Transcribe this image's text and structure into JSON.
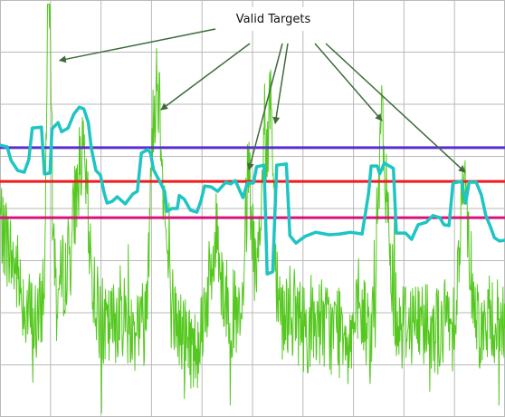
{
  "chart_data": {
    "type": "line",
    "annotation": "Valid Targets",
    "x_range": [
      0,
      1000
    ],
    "y_range": [
      0,
      100
    ],
    "grid": true,
    "colors": {
      "signal": "#55c81f",
      "threshold": "#1fc4c4",
      "level_high": "#5b2fcf",
      "level_mid": "#ee1c1c",
      "level_low": "#d6127a",
      "grid": "#b9b9b9",
      "arrow": "#3f6b3b"
    },
    "levels": [
      {
        "key": "level_high",
        "y": 64.6
      },
      {
        "key": "level_mid",
        "y": 56.5
      },
      {
        "key": "level_low",
        "y": 47.8
      }
    ],
    "threshold_trace": [
      [
        0,
        65.2
      ],
      [
        14,
        64.8
      ],
      [
        22,
        61.5
      ],
      [
        35,
        59.1
      ],
      [
        48,
        58.7
      ],
      [
        57,
        61.7
      ],
      [
        64,
        69.3
      ],
      [
        82,
        69.5
      ],
      [
        88,
        58.3
      ],
      [
        99,
        58.5
      ],
      [
        103,
        69.1
      ],
      [
        115,
        70.6
      ],
      [
        122,
        68.4
      ],
      [
        135,
        69.3
      ],
      [
        146,
        72.6
      ],
      [
        157,
        74.3
      ],
      [
        166,
        73.9
      ],
      [
        175,
        70.6
      ],
      [
        181,
        64.3
      ],
      [
        190,
        59.1
      ],
      [
        199,
        58.0
      ],
      [
        206,
        53.9
      ],
      [
        212,
        51.3
      ],
      [
        222,
        51.7
      ],
      [
        232,
        52.8
      ],
      [
        248,
        51.1
      ],
      [
        263,
        53.5
      ],
      [
        272,
        54.1
      ],
      [
        280,
        63.3
      ],
      [
        293,
        64.1
      ],
      [
        298,
        63.3
      ],
      [
        304,
        59.3
      ],
      [
        318,
        56.1
      ],
      [
        326,
        54.1
      ],
      [
        331,
        49.3
      ],
      [
        340,
        50.0
      ],
      [
        351,
        50.0
      ],
      [
        355,
        53.1
      ],
      [
        365,
        52.2
      ],
      [
        377,
        49.6
      ],
      [
        390,
        49.1
      ],
      [
        398,
        51.9
      ],
      [
        405,
        55.4
      ],
      [
        418,
        55.2
      ],
      [
        431,
        54.1
      ],
      [
        439,
        55.2
      ],
      [
        447,
        56.3
      ],
      [
        457,
        55.9
      ],
      [
        466,
        56.7
      ],
      [
        481,
        52.6
      ],
      [
        490,
        56.1
      ],
      [
        502,
        56.1
      ],
      [
        508,
        60.0
      ],
      [
        523,
        60.4
      ],
      [
        529,
        34.3
      ],
      [
        540,
        34.8
      ],
      [
        548,
        60.4
      ],
      [
        567,
        60.7
      ],
      [
        574,
        43.5
      ],
      [
        586,
        41.7
      ],
      [
        604,
        43.3
      ],
      [
        625,
        44.3
      ],
      [
        652,
        43.7
      ],
      [
        673,
        43.9
      ],
      [
        694,
        44.3
      ],
      [
        717,
        43.9
      ],
      [
        730,
        53.7
      ],
      [
        735,
        60.2
      ],
      [
        747,
        60.2
      ],
      [
        752,
        58.3
      ],
      [
        761,
        60.9
      ],
      [
        779,
        59.6
      ],
      [
        785,
        44.1
      ],
      [
        803,
        44.1
      ],
      [
        815,
        42.6
      ],
      [
        828,
        46.1
      ],
      [
        844,
        46.7
      ],
      [
        857,
        48.3
      ],
      [
        871,
        47.8
      ],
      [
        879,
        46.1
      ],
      [
        889,
        45.9
      ],
      [
        897,
        56.1
      ],
      [
        914,
        56.5
      ],
      [
        922,
        51.3
      ],
      [
        929,
        56.3
      ],
      [
        943,
        56.3
      ],
      [
        953,
        53.3
      ],
      [
        962,
        48.3
      ],
      [
        971,
        45.7
      ],
      [
        979,
        43.0
      ],
      [
        989,
        42.2
      ],
      [
        1000,
        42.4
      ]
    ],
    "signal_trace": [
      [
        0,
        48
      ],
      [
        18,
        40
      ],
      [
        35,
        34
      ],
      [
        52,
        26
      ],
      [
        68,
        22
      ],
      [
        80,
        24
      ],
      [
        89,
        36
      ],
      [
        94,
        98.6
      ],
      [
        100,
        98.6
      ],
      [
        104,
        50
      ],
      [
        112,
        28
      ],
      [
        125,
        34
      ],
      [
        140,
        40
      ],
      [
        152,
        56
      ],
      [
        160,
        62
      ],
      [
        168,
        60
      ],
      [
        176,
        44
      ],
      [
        184,
        32
      ],
      [
        196,
        24
      ],
      [
        210,
        20
      ],
      [
        222,
        22
      ],
      [
        236,
        26
      ],
      [
        250,
        24
      ],
      [
        262,
        20
      ],
      [
        272,
        24
      ],
      [
        280,
        22
      ],
      [
        290,
        26
      ],
      [
        298,
        60
      ],
      [
        304,
        70
      ],
      [
        310,
        82
      ],
      [
        316,
        76
      ],
      [
        322,
        62
      ],
      [
        330,
        40
      ],
      [
        338,
        28
      ],
      [
        350,
        22
      ],
      [
        362,
        20
      ],
      [
        374,
        18
      ],
      [
        386,
        16
      ],
      [
        396,
        20
      ],
      [
        404,
        26
      ],
      [
        412,
        30
      ],
      [
        422,
        36
      ],
      [
        430,
        46
      ],
      [
        440,
        32
      ],
      [
        452,
        26
      ],
      [
        466,
        24
      ],
      [
        478,
        20
      ],
      [
        486,
        44
      ],
      [
        492,
        60
      ],
      [
        498,
        48
      ],
      [
        506,
        30
      ],
      [
        512,
        40
      ],
      [
        518,
        56
      ],
      [
        524,
        72
      ],
      [
        528,
        58
      ],
      [
        532,
        70
      ],
      [
        536,
        82
      ],
      [
        540,
        62
      ],
      [
        548,
        34
      ],
      [
        560,
        24
      ],
      [
        572,
        26
      ],
      [
        586,
        24
      ],
      [
        600,
        22
      ],
      [
        616,
        20
      ],
      [
        630,
        24
      ],
      [
        645,
        22
      ],
      [
        660,
        20
      ],
      [
        675,
        24
      ],
      [
        690,
        20
      ],
      [
        705,
        22
      ],
      [
        720,
        24
      ],
      [
        734,
        18
      ],
      [
        742,
        34
      ],
      [
        750,
        54
      ],
      [
        756,
        72
      ],
      [
        760,
        64
      ],
      [
        766,
        52
      ],
      [
        772,
        40
      ],
      [
        782,
        26
      ],
      [
        796,
        22
      ],
      [
        810,
        24
      ],
      [
        826,
        22
      ],
      [
        842,
        24
      ],
      [
        858,
        22
      ],
      [
        872,
        20
      ],
      [
        886,
        24
      ],
      [
        896,
        22
      ],
      [
        904,
        30
      ],
      [
        912,
        46
      ],
      [
        918,
        58
      ],
      [
        924,
        50
      ],
      [
        932,
        36
      ],
      [
        944,
        24
      ],
      [
        958,
        20
      ],
      [
        972,
        24
      ],
      [
        986,
        22
      ],
      [
        1000,
        22
      ]
    ],
    "targets": [
      {
        "x": 118,
        "y": 85.5
      },
      {
        "x": 319,
        "y": 73.7
      },
      {
        "x": 493,
        "y": 59.3
      },
      {
        "x": 545,
        "y": 70.4
      },
      {
        "x": 756,
        "y": 71.1
      },
      {
        "x": 921,
        "y": 58.7
      }
    ]
  }
}
